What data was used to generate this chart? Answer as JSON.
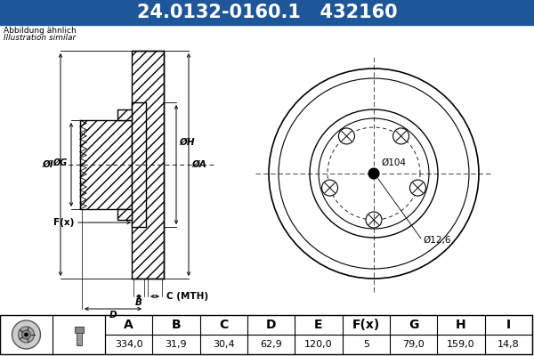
{
  "title_text": "24.0132-0160.1   432160",
  "title_bg": "#1e5799",
  "title_color": "#ffffff",
  "title_fontsize": 15,
  "note_line1": "Abbildung ähnlich",
  "note_line2": "Illustration similar",
  "bg_color": "#ffffff",
  "table_headers": [
    "A",
    "B",
    "C",
    "D",
    "E",
    "F(x)",
    "G",
    "H",
    "I"
  ],
  "table_values": [
    "334,0",
    "31,9",
    "30,4",
    "62,9",
    "120,0",
    "5",
    "79,0",
    "159,0",
    "14,8"
  ],
  "front_ann1": "Ø104",
  "front_ann2": "Ø12,6"
}
